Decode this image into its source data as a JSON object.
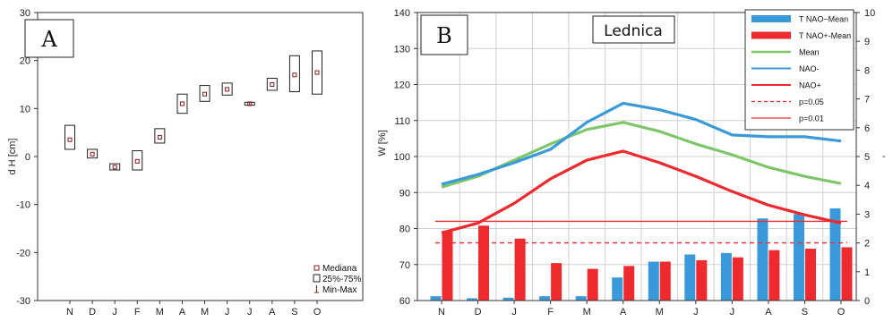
{
  "chart_data": [
    {
      "type": "box",
      "panel_label": "A",
      "categories": [
        "N",
        "D",
        "J",
        "F",
        "M",
        "A",
        "M",
        "J",
        "J",
        "A",
        "S",
        "O"
      ],
      "ylabel": "d H [cm]",
      "ylim": [
        -30,
        30
      ],
      "yticks": [
        -30,
        -20,
        -10,
        0,
        10,
        20,
        30
      ],
      "median": [
        3.5,
        0.5,
        -2.2,
        -1.0,
        4.0,
        11.0,
        13.0,
        14.0,
        11.0,
        15.0,
        17.0,
        17.5
      ],
      "q1": [
        1.5,
        -0.3,
        -2.8,
        -2.8,
        2.8,
        9.0,
        11.5,
        12.8,
        10.7,
        13.8,
        13.5,
        13.0
      ],
      "q3": [
        6.5,
        1.5,
        -1.5,
        1.2,
        5.8,
        13.0,
        14.8,
        15.3,
        11.3,
        16.3,
        21.0,
        22.0
      ],
      "min": [
        3.5,
        0.5,
        -2.2,
        -1.0,
        4.0,
        11.0,
        13.0,
        14.0,
        10.6,
        15.0,
        17.0,
        17.5
      ],
      "max": [
        3.5,
        0.5,
        -2.2,
        -1.0,
        4.0,
        11.0,
        13.0,
        14.0,
        11.4,
        15.0,
        17.0,
        17.5
      ],
      "legend": [
        "Mediana",
        "25%-75%",
        "Min-Max"
      ],
      "legend_position": "bottom-right",
      "grid": false
    },
    {
      "type": "bar-line",
      "panel_label": "B",
      "title": "Lednica",
      "categories": [
        "N",
        "D",
        "J",
        "F",
        "M",
        "A",
        "M",
        "J",
        "J",
        "A",
        "S",
        "O"
      ],
      "ylabel": "W [%]",
      "ylim": [
        60,
        140
      ],
      "yticks": [
        60,
        70,
        80,
        90,
        100,
        110,
        120,
        130,
        140
      ],
      "y2lim": [
        0,
        10
      ],
      "y2ticks": [
        0,
        1,
        2,
        3,
        4,
        5,
        6,
        7,
        8,
        9,
        10
      ],
      "grid": true,
      "bars": [
        {
          "name": "T NAO−Mean",
          "color": "#3a9ad9",
          "axis": "right",
          "values": [
            0.15,
            0.08,
            0.1,
            0.15,
            0.15,
            0.8,
            1.35,
            1.6,
            1.65,
            2.85,
            3.0,
            3.2
          ]
        },
        {
          "name": "T NAO+-Mean",
          "color": "#ee2a2f",
          "axis": "right",
          "values": [
            2.4,
            2.6,
            2.15,
            1.3,
            1.1,
            1.2,
            1.35,
            1.4,
            1.5,
            1.75,
            1.8,
            1.85
          ]
        }
      ],
      "series": [
        {
          "name": "Mean",
          "color": "#7dc66a",
          "values": [
            91.5,
            94.5,
            99.0,
            103.5,
            107.5,
            109.5,
            107.0,
            103.5,
            100.5,
            97.0,
            94.5,
            92.5
          ]
        },
        {
          "name": "NAO-",
          "color": "#3a9ad9",
          "values": [
            92.3,
            95.0,
            98.3,
            102.0,
            109.5,
            114.8,
            113.0,
            110.3,
            106.0,
            105.5,
            105.5,
            104.3
          ]
        },
        {
          "name": "NAO+",
          "color": "#ee2a2f",
          "values": [
            78.8,
            81.5,
            87.0,
            93.8,
            99.0,
            101.5,
            98.3,
            94.5,
            90.3,
            86.5,
            83.8,
            81.5
          ]
        }
      ],
      "thresholds": [
        {
          "name": "p=0.05",
          "value": 2.0,
          "axis": "right",
          "style": "dashed",
          "color": "#ee2a2f"
        },
        {
          "name": "p=0.01",
          "value": 2.75,
          "axis": "right",
          "style": "solid",
          "color": "#ee2a2f"
        }
      ],
      "legend": [
        "T NAO−Mean",
        "T NAO+-Mean",
        "Mean",
        "NAO-",
        "NAO+",
        "p=0.05",
        "p=0.01"
      ],
      "legend_position": "top-right"
    }
  ]
}
